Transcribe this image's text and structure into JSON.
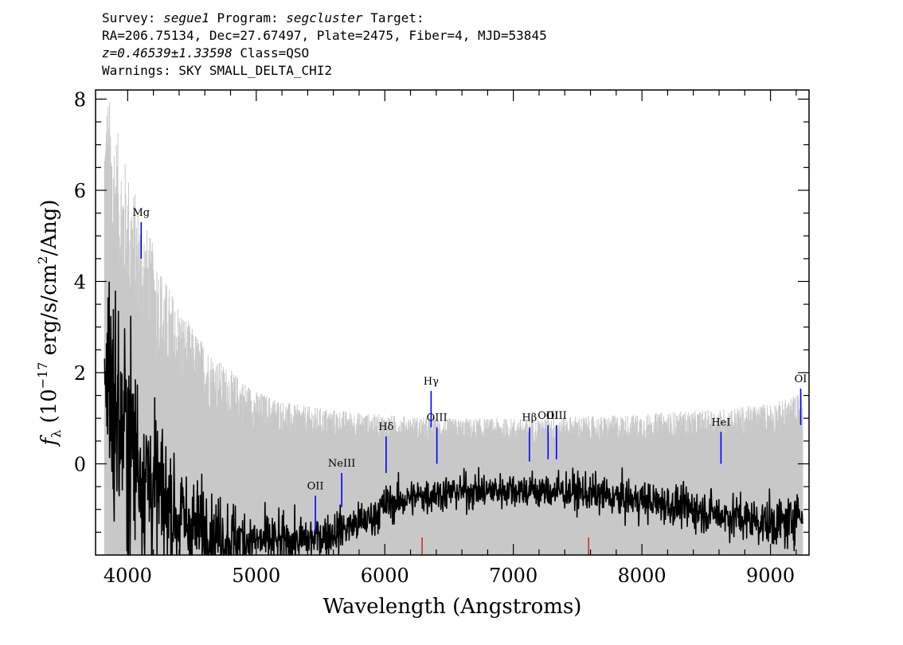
{
  "header": {
    "line1": {
      "survey_label": "Survey:",
      "survey": "segue1",
      "program_label": "Program:",
      "program": "segcluster",
      "target_label": "Target:"
    },
    "line2": "RA=206.75134, Dec=27.67497, Plate=2475, Fiber=4, MJD=53845",
    "line3": {
      "z": "z=0.46539±1.33598",
      "class": "Class=QSO"
    },
    "line4": "Warnings: SKY SMALL_DELTA_CHI2"
  },
  "chart_data": {
    "type": "line",
    "xlabel": "Wavelength (Angstroms)",
    "ylabel_parts": {
      "f": "f",
      "sub": "λ",
      "pre": " (10",
      "exp": "−17",
      "mid": " erg/s/cm",
      "exp2": "2",
      "post": "/Ang)"
    },
    "xlim": [
      3750,
      9300
    ],
    "ylim": [
      -2,
      8.2
    ],
    "x_ticks": [
      4000,
      5000,
      6000,
      7000,
      8000,
      9000
    ],
    "x_tick_labels": [
      "4000",
      "5000",
      "6000",
      "7000",
      "8000",
      "9000"
    ],
    "y_ticks": [
      0,
      2,
      4,
      6,
      8
    ],
    "y_tick_labels": [
      "0",
      "2",
      "4",
      "6",
      "8"
    ],
    "grid": false,
    "series": [
      {
        "role": "error",
        "color": "#c8c8c8",
        "x": [
          3800,
          3850,
          3900,
          3950,
          4000,
          4100,
          4200,
          4300,
          4500,
          4700,
          5000,
          5300,
          5600,
          5900,
          6200,
          6500,
          6800,
          7100,
          7400,
          7700,
          8000,
          8300,
          8600,
          8900,
          9100,
          9250
        ],
        "y": [
          8.2,
          8.2,
          7.5,
          7.0,
          6.5,
          5.6,
          4.8,
          4.0,
          3.0,
          2.3,
          1.6,
          1.3,
          1.2,
          1.1,
          1.05,
          1.0,
          1.0,
          1.0,
          1.05,
          1.05,
          1.1,
          1.15,
          1.2,
          1.3,
          1.4,
          1.6
        ]
      },
      {
        "role": "flux",
        "color": "#000000",
        "x": [
          3820,
          3900,
          4000,
          4100,
          4200,
          4300,
          4400,
          4500,
          4700,
          5000,
          5300,
          5500,
          5700,
          5900,
          6000,
          6200,
          6400,
          6600,
          6800,
          7000,
          7200,
          7400,
          7600,
          7800,
          8000,
          8200,
          8400,
          8600,
          8800,
          9000,
          9150,
          9200,
          9250
        ],
        "y": [
          2.5,
          1.2,
          0.5,
          0.0,
          -0.5,
          -0.9,
          -1.2,
          -1.4,
          -1.6,
          -1.7,
          -1.7,
          -1.6,
          -1.4,
          -1.2,
          -0.9,
          -0.75,
          -0.65,
          -0.6,
          -0.6,
          -0.55,
          -0.6,
          -0.6,
          -0.65,
          -0.75,
          -0.8,
          -0.9,
          -1.0,
          -1.1,
          -1.2,
          -1.3,
          -1.3,
          -1.0,
          -1.2
        ]
      }
    ],
    "lines": [
      {
        "label": "Mg",
        "x": 4105,
        "y_top": 5.3,
        "y_bottom": 4.5
      },
      {
        "label": "OII",
        "x": 5460,
        "y_top": -0.7,
        "y_bottom": -1.5
      },
      {
        "label": "NeIII",
        "x": 5665,
        "y_top": -0.2,
        "y_bottom": -0.95
      },
      {
        "label": "Hδ",
        "x": 6010,
        "y_top": 0.6,
        "y_bottom": -0.2
      },
      {
        "label": "Hγ",
        "x": 6360,
        "y_top": 1.6,
        "y_bottom": 0.8
      },
      {
        "label": "OIII",
        "x": 6405,
        "y_top": 0.8,
        "y_bottom": 0.0
      },
      {
        "label": "Hβ",
        "x": 7125,
        "y_top": 0.8,
        "y_bottom": 0.05
      },
      {
        "label": "OIII",
        "x": 7270,
        "y_top": 0.85,
        "y_bottom": 0.1
      },
      {
        "label": "OIII",
        "x": 7335,
        "y_top": 0.85,
        "y_bottom": 0.1
      },
      {
        "label": "HeI",
        "x": 8615,
        "y_top": 0.7,
        "y_bottom": 0.0
      },
      {
        "label": "OI",
        "x": 9235,
        "y_top": 1.65,
        "y_bottom": 0.85
      }
    ],
    "line_color": "#0000ff",
    "mask_color": "#cc0000",
    "mask_x": [
      6290,
      7585
    ]
  }
}
